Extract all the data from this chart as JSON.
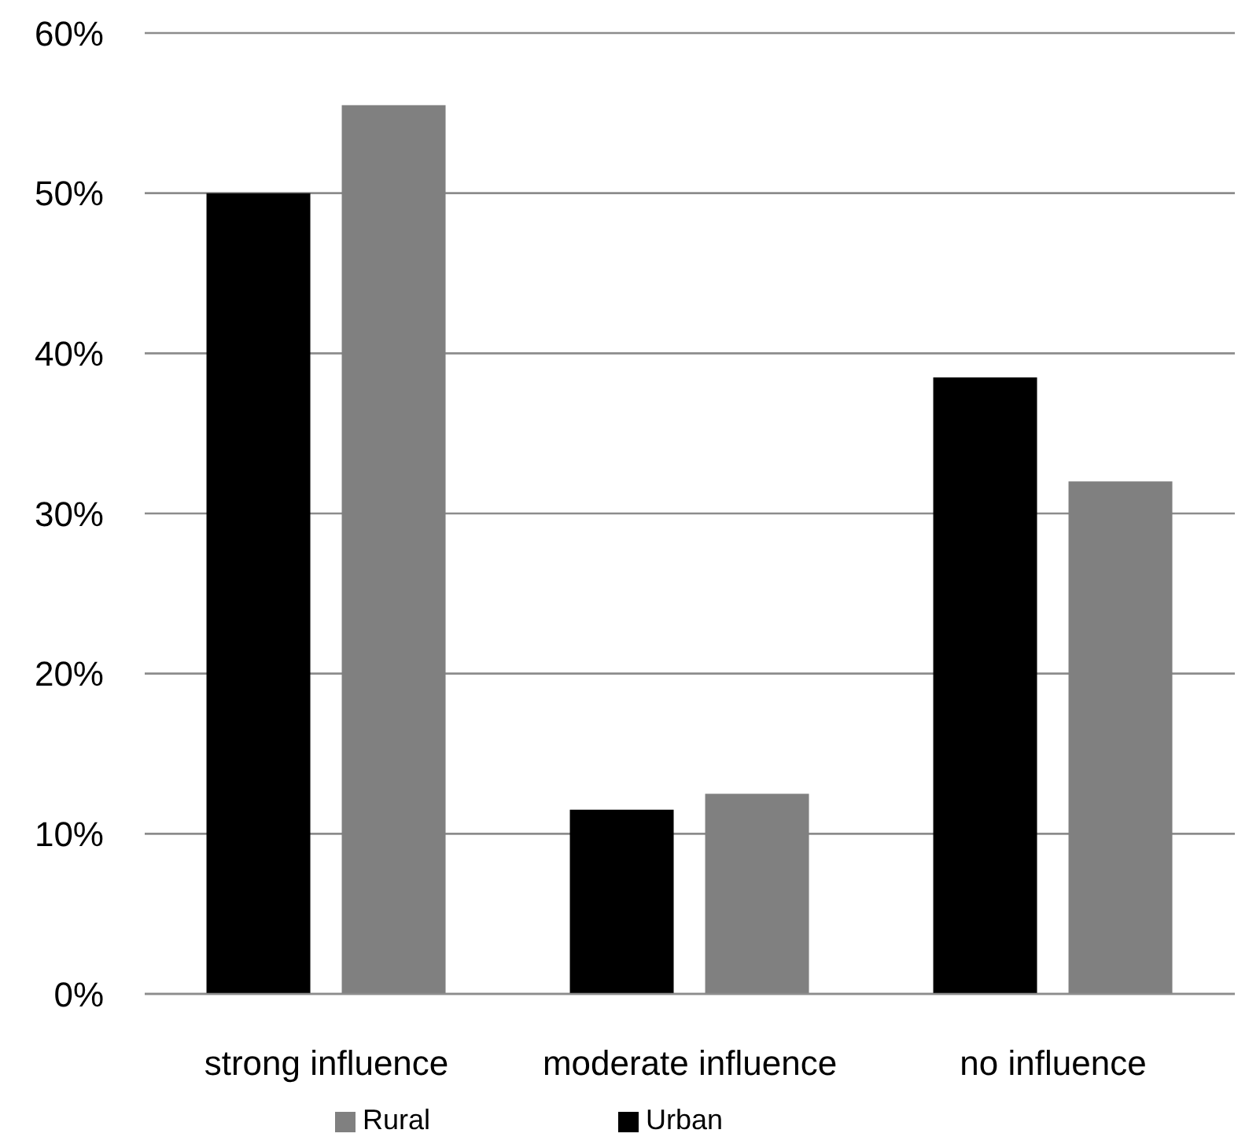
{
  "chart_data": {
    "type": "bar",
    "categories": [
      "strong influence",
      "moderate influence",
      "no influence"
    ],
    "series": [
      {
        "name": "Urban",
        "color": "#000000",
        "values": [
          50,
          11.5,
          38.5
        ]
      },
      {
        "name": "Rural",
        "color": "#808080",
        "values": [
          55.5,
          12.5,
          32
        ]
      }
    ],
    "ylim": [
      0,
      60
    ],
    "yticks": [
      {
        "value": 0,
        "label": "0%"
      },
      {
        "value": 10,
        "label": "10%"
      },
      {
        "value": 20,
        "label": "20%"
      },
      {
        "value": 30,
        "label": "30%"
      },
      {
        "value": 40,
        "label": "40%"
      },
      {
        "value": 50,
        "label": "50%"
      },
      {
        "value": 60,
        "label": "60%"
      }
    ],
    "grid": "y",
    "legend": "bottom"
  }
}
